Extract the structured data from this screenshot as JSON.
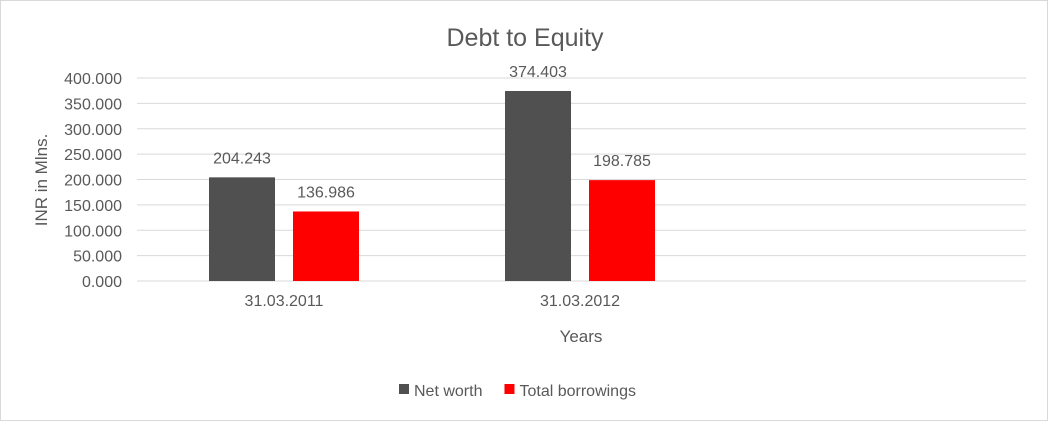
{
  "chart_data": {
    "type": "bar",
    "title": "Debt to Equity",
    "xlabel": "Years",
    "ylabel": "INR in Mlns.",
    "categories": [
      "31.03.2011",
      "31.03.2012"
    ],
    "series": [
      {
        "name": "Net worth",
        "values": [
          204.243,
          374.403
        ],
        "color": "#505050"
      },
      {
        "name": "Total borrowings",
        "values": [
          136.986,
          198.785
        ],
        "color": "#ff0000"
      }
    ],
    "data_labels": [
      [
        "204.243",
        "374.403"
      ],
      [
        "136.986",
        "198.785"
      ]
    ],
    "ylim": [
      0,
      400
    ],
    "yticks": [
      "0.000",
      "50.000",
      "100.000",
      "150.000",
      "200.000",
      "250.000",
      "300.000",
      "350.000",
      "400.000"
    ],
    "grid": true,
    "legend": "bottom"
  }
}
